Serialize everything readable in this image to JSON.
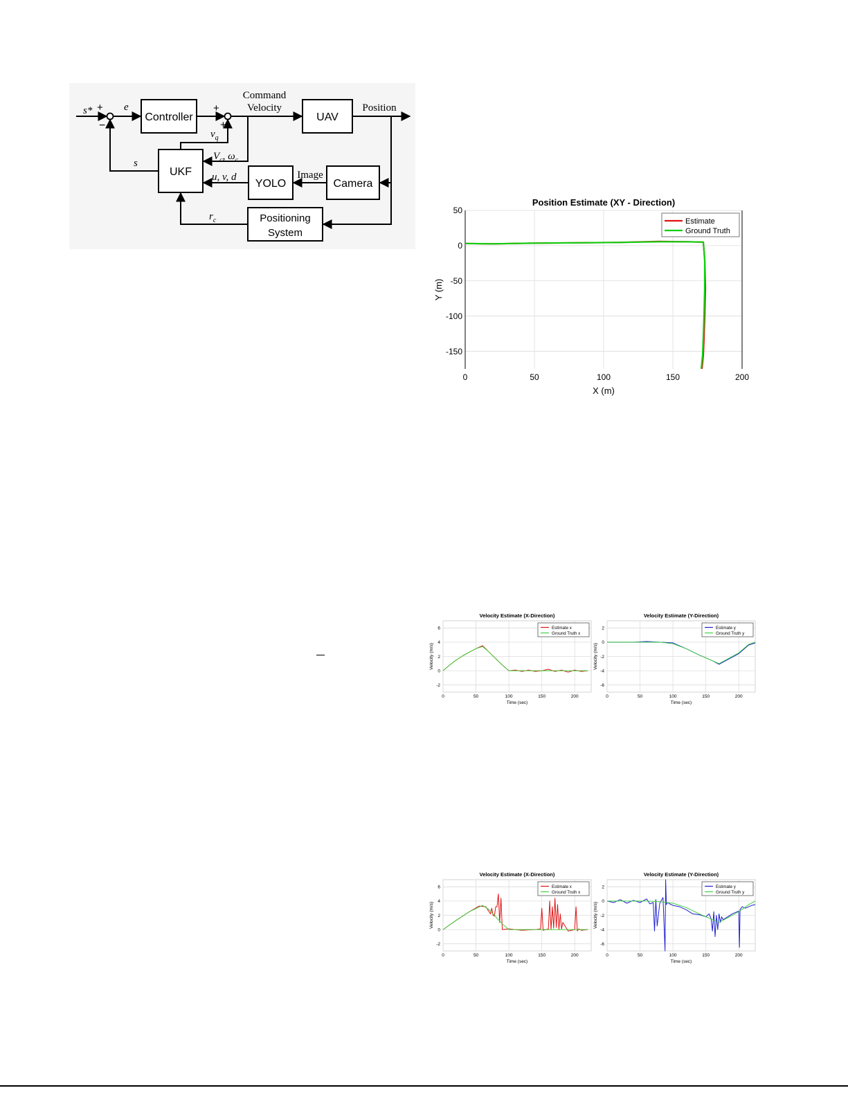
{
  "block_diagram": {
    "blocks": {
      "controller": "Controller",
      "uav": "UAV",
      "ukf": "UKF",
      "yolo": "YOLO",
      "camera": "Camera",
      "positioning_line1": "Positioning",
      "positioning_line2": "System"
    },
    "labels": {
      "s_star": "s*",
      "plus1": "+",
      "minus1": "−",
      "e": "e",
      "plus2": "+",
      "plus3": "+",
      "command_line1": "Command",
      "command_line2": "Velocity",
      "position": "Position",
      "vq": "v",
      "vq_sub": "q",
      "s": "s",
      "vc": "V",
      "vc_sub": "c",
      "omega": ", ω",
      "omega_sub": "c",
      "uvd": "u, v, d",
      "image": "Image",
      "rc": "r",
      "rc_sub": "c"
    }
  },
  "chart_data": [
    {
      "type": "line",
      "title": "Position Estimate (XY - Direction)",
      "xlabel": "X (m)",
      "ylabel": "Y (m)",
      "xlim": [
        0,
        200
      ],
      "ylim": [
        -175,
        50
      ],
      "xticks": [
        "0",
        "50",
        "100",
        "150",
        "200"
      ],
      "yticks": [
        "50",
        "0",
        "-50",
        "-100",
        "-150"
      ],
      "grid": true,
      "legend_position": "top-right",
      "series": [
        {
          "name": "Estimate",
          "color": "#e01010",
          "x": [
            0,
            20,
            50,
            80,
            110,
            140,
            160,
            172,
            173,
            173.5,
            173,
            172.5,
            172,
            171
          ],
          "y": [
            3,
            2.5,
            3.5,
            4,
            4.5,
            6,
            5.5,
            5,
            -20,
            -60,
            -100,
            -130,
            -155,
            -175
          ]
        },
        {
          "name": "Ground Truth",
          "color": "#10d010",
          "x": [
            0,
            20,
            50,
            80,
            110,
            140,
            160,
            172,
            173,
            173,
            172.5,
            172,
            171.5,
            170.5
          ],
          "y": [
            3,
            2.5,
            3.5,
            4,
            4.5,
            5.5,
            5.5,
            5,
            -20,
            -60,
            -100,
            -130,
            -155,
            -175
          ]
        }
      ]
    },
    {
      "type": "line",
      "title": "Velocity Estimate (X-Direction)",
      "xlabel": "Time (sec)",
      "ylabel": "Velocity (m/s)",
      "xlim": [
        0,
        225
      ],
      "ylim": [
        -3,
        7
      ],
      "xticks": [
        "0",
        "50",
        "100",
        "150",
        "200"
      ],
      "yticks": [
        "6",
        "4",
        "2",
        "0",
        "-2"
      ],
      "grid": true,
      "legend_position": "top-right",
      "series": [
        {
          "name": "Estimate x",
          "color": "#e01010",
          "x": [
            0,
            10,
            20,
            30,
            40,
            50,
            60,
            70,
            80,
            90,
            100,
            110,
            120,
            130,
            140,
            150,
            160,
            170,
            180,
            190,
            200,
            210,
            220
          ],
          "y": [
            0,
            0.8,
            1.5,
            2.1,
            2.6,
            3.1,
            3.5,
            2.6,
            1.7,
            0.8,
            0,
            0.1,
            -0.1,
            0.1,
            -0.1,
            0,
            0.2,
            -0.1,
            0.1,
            -0.2,
            0.1,
            -0.1,
            0
          ]
        },
        {
          "name": "Ground Truth x",
          "color": "#40d040",
          "x": [
            0,
            10,
            20,
            30,
            40,
            50,
            60,
            70,
            80,
            90,
            100,
            110,
            220
          ],
          "y": [
            0,
            0.8,
            1.5,
            2.1,
            2.6,
            3.1,
            3.4,
            2.6,
            1.7,
            0.8,
            0,
            0,
            0
          ]
        }
      ]
    },
    {
      "type": "line",
      "title": "Velocity Estimate (Y-Direction)",
      "xlabel": "Time (sec)",
      "ylabel": "Velocity (m/s)",
      "xlim": [
        0,
        225
      ],
      "ylim": [
        -7,
        3
      ],
      "xticks": [
        "0",
        "50",
        "100",
        "150",
        "200"
      ],
      "yticks": [
        "2",
        "0",
        "-2",
        "-4",
        "-6"
      ],
      "grid": true,
      "legend_position": "top-right",
      "series": [
        {
          "name": "Estimate y",
          "color": "#2020d0",
          "x": [
            0,
            20,
            40,
            60,
            80,
            100,
            120,
            140,
            160,
            170,
            180,
            200,
            215,
            225
          ],
          "y": [
            0,
            0,
            0,
            0.1,
            0,
            -0.1,
            -0.9,
            -1.8,
            -2.6,
            -3.1,
            -2.6,
            -1.6,
            -0.4,
            -0.1
          ]
        },
        {
          "name": "Ground Truth y",
          "color": "#40d040",
          "x": [
            0,
            20,
            40,
            60,
            80,
            100,
            120,
            140,
            160,
            170,
            180,
            200,
            215,
            225
          ],
          "y": [
            0,
            0,
            0,
            0,
            0,
            -0.2,
            -0.9,
            -1.8,
            -2.6,
            -3.0,
            -2.5,
            -1.5,
            -0.3,
            0
          ]
        }
      ]
    },
    {
      "type": "line",
      "title": "Velocity Estimate (X-Direction)",
      "xlabel": "Time (sec)",
      "ylabel": "Velocity (m/s)",
      "xlim": [
        0,
        225
      ],
      "ylim": [
        -3,
        7
      ],
      "xticks": [
        "0",
        "50",
        "100",
        "150",
        "200"
      ],
      "yticks": [
        "6",
        "4",
        "2",
        "0",
        "-2"
      ],
      "grid": true,
      "legend_position": "top-right",
      "series": [
        {
          "name": "Estimate x",
          "color": "#e01010",
          "x": [
            0,
            20,
            40,
            55,
            65,
            72,
            74,
            76,
            78,
            80,
            82,
            84,
            86,
            88,
            90,
            100,
            120,
            140,
            148,
            150,
            152,
            160,
            162,
            164,
            166,
            168,
            170,
            172,
            174,
            176,
            178,
            180,
            182,
            190,
            200,
            202,
            204,
            206,
            210,
            220
          ],
          "y": [
            0,
            1.3,
            2.5,
            3.3,
            3.2,
            2.2,
            3.0,
            2.0,
            1.9,
            3.2,
            3.2,
            5.0,
            1.0,
            4.4,
            0.0,
            0.1,
            -0.1,
            0.0,
            0.1,
            3.0,
            -0.1,
            0.1,
            4.0,
            0.0,
            3.2,
            0.2,
            4.4,
            0.3,
            3.5,
            0.0,
            2.2,
            0.1,
            1.0,
            -0.2,
            0.0,
            3.2,
            -0.2,
            0.1,
            -0.1,
            0.0
          ]
        },
        {
          "name": "Ground Truth x",
          "color": "#40d040",
          "x": [
            0,
            20,
            40,
            60,
            70,
            80,
            90,
            100,
            220
          ],
          "y": [
            0,
            1.3,
            2.5,
            3.4,
            2.8,
            1.8,
            0.8,
            0,
            0
          ]
        }
      ]
    },
    {
      "type": "line",
      "title": "Velocity Estimate (Y-Direction)",
      "xlabel": "Time (sec)",
      "ylabel": "Velocity (m/s)",
      "xlim": [
        0,
        225
      ],
      "ylim": [
        -7,
        3
      ],
      "xticks": [
        "0",
        "50",
        "100",
        "150",
        "200"
      ],
      "yticks": [
        "2",
        "0",
        "-2",
        "-4",
        "-6"
      ],
      "grid": true,
      "legend_position": "top-right",
      "series": [
        {
          "name": "Estimate y",
          "color": "#2020d0",
          "x": [
            0,
            10,
            20,
            30,
            40,
            50,
            60,
            65,
            70,
            72,
            74,
            76,
            80,
            85,
            88,
            89,
            90,
            92,
            95,
            100,
            110,
            120,
            130,
            140,
            150,
            155,
            158,
            160,
            162,
            164,
            166,
            168,
            170,
            172,
            174,
            176,
            180,
            190,
            200,
            201,
            202,
            205,
            210,
            220,
            225
          ],
          "y": [
            0,
            -0.2,
            0.2,
            -0.3,
            0.1,
            -0.2,
            0.3,
            -0.4,
            -0.2,
            -4.2,
            0.2,
            -3.5,
            -0.3,
            0.5,
            -7.0,
            3.0,
            -0.5,
            -0.2,
            -0.4,
            -0.6,
            -0.8,
            -1.2,
            -1.8,
            -1.9,
            -2.2,
            -1.8,
            -2.5,
            -4.2,
            -1.5,
            -5.0,
            -2.0,
            -4.0,
            -1.8,
            -3.0,
            -2.2,
            -2.6,
            -2.4,
            -1.8,
            -1.4,
            -6.5,
            -1.2,
            -0.8,
            -1.0,
            -0.6,
            -0.5
          ]
        },
        {
          "name": "Ground Truth y",
          "color": "#40d040",
          "x": [
            0,
            40,
            60,
            80,
            100,
            120,
            140,
            160,
            170,
            180,
            200,
            215,
            225
          ],
          "y": [
            0,
            0,
            0,
            -0.1,
            -0.3,
            -0.9,
            -1.8,
            -2.6,
            -3.0,
            -2.5,
            -1.5,
            -0.5,
            0
          ]
        }
      ]
    }
  ]
}
